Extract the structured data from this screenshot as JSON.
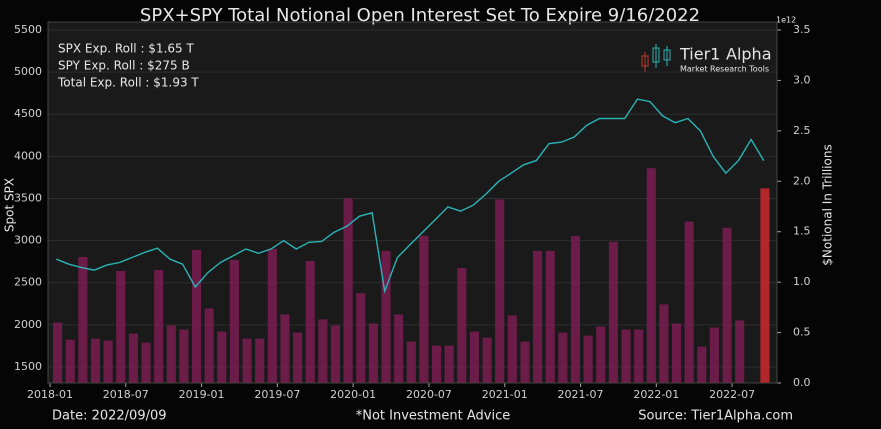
{
  "chart_data": {
    "type": "combo",
    "title": "SPX+SPY Total Notional Open Interest Set To Expire 9/16/2022",
    "annotations": [
      "SPX Exp. Roll : $1.65 T",
      "SPY Exp. Roll : $275 B",
      "Total Exp. Roll : $1.93 T"
    ],
    "ylabel": "Spot SPX",
    "y2label": "$Notional In Trillions",
    "y2_offset_label": "1e12",
    "x": [
      "2018-01",
      "2018-02",
      "2018-03",
      "2018-04",
      "2018-05",
      "2018-06",
      "2018-07",
      "2018-08",
      "2018-09",
      "2018-10",
      "2018-11",
      "2018-12",
      "2019-01",
      "2019-02",
      "2019-03",
      "2019-04",
      "2019-05",
      "2019-06",
      "2019-07",
      "2019-08",
      "2019-09",
      "2019-10",
      "2019-11",
      "2019-12",
      "2020-01",
      "2020-02",
      "2020-03",
      "2020-04",
      "2020-05",
      "2020-06",
      "2020-07",
      "2020-08",
      "2020-09",
      "2020-10",
      "2020-11",
      "2020-12",
      "2021-01",
      "2021-02",
      "2021-03",
      "2021-04",
      "2021-05",
      "2021-06",
      "2021-07",
      "2021-08",
      "2021-09",
      "2021-10",
      "2021-11",
      "2021-12",
      "2022-01",
      "2022-02",
      "2022-03",
      "2022-04",
      "2022-05",
      "2022-06",
      "2022-07",
      "2022-08",
      "2022-09"
    ],
    "series": [
      {
        "type": "bar",
        "axis": "y2",
        "color": "#7a1d52",
        "last_color": "#c4282b",
        "values": [
          0.6,
          0.43,
          1.25,
          0.44,
          0.42,
          1.11,
          0.49,
          0.4,
          1.12,
          0.57,
          0.53,
          1.32,
          0.74,
          0.51,
          1.22,
          0.44,
          0.44,
          1.33,
          0.68,
          0.5,
          1.21,
          0.63,
          0.57,
          1.83,
          0.89,
          0.59,
          1.31,
          0.68,
          0.41,
          1.46,
          0.37,
          0.37,
          1.14,
          0.51,
          0.45,
          1.82,
          0.67,
          0.41,
          1.31,
          1.31,
          0.5,
          1.46,
          0.47,
          0.56,
          1.4,
          0.53,
          0.53,
          2.13,
          0.78,
          0.59,
          1.6,
          0.36,
          0.55,
          1.54,
          0.62,
          null,
          1.93
        ]
      },
      {
        "type": "line",
        "color": "#2bb3b6",
        "values": [
          2780,
          2720,
          2680,
          2650,
          2710,
          2740,
          2800,
          2860,
          2910,
          2780,
          2720,
          2450,
          2620,
          2740,
          2820,
          2900,
          2850,
          2900,
          3000,
          2900,
          2980,
          2990,
          3100,
          3170,
          3290,
          3330,
          2400,
          2800,
          2950,
          3100,
          3250,
          3400,
          3350,
          3420,
          3550,
          3700,
          3800,
          3900,
          3950,
          4150,
          4170,
          4230,
          4370,
          4450,
          4450,
          4450,
          4680,
          4650,
          4480,
          4400,
          4450,
          4300,
          4000,
          3800,
          3950,
          4200,
          3950
        ]
      }
    ],
    "xlim": [
      "2018-01",
      "2022-10"
    ],
    "xticks": [
      "2018-01",
      "2018-07",
      "2019-01",
      "2019-07",
      "2020-01",
      "2020-07",
      "2021-01",
      "2021-07",
      "2022-01",
      "2022-07"
    ],
    "ylim": [
      1310,
      5500
    ],
    "yticks": [
      1500,
      2000,
      2500,
      3000,
      3500,
      4000,
      4500,
      5000,
      5500
    ],
    "y2lim": [
      0,
      3.5
    ],
    "y2ticks": [
      {
        "value": 0,
        "label": "0.0"
      },
      0.5,
      {
        "value": 1,
        "label": "1.0"
      },
      1.5,
      {
        "value": 2,
        "label": "2.0"
      },
      2.5,
      {
        "value": 3,
        "label": "3.0"
      },
      3.5
    ],
    "grid": true
  },
  "logo": {
    "name": "Tier1",
    "accent": "Alpha",
    "tagline": "Market Research Tools"
  },
  "footer": {
    "date": "Date: 2022/09/09",
    "disclaimer": "*Not Investment Advice",
    "source": "Source: Tier1Alpha.com"
  }
}
